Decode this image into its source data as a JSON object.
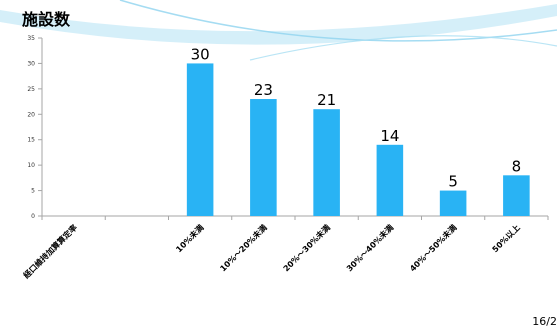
{
  "title": "施設数",
  "page_number": "16/2",
  "colors": {
    "bar": "#29B3F4",
    "axis": "#a6a6a6",
    "swoosh_light": "#c7eaf7",
    "swoosh_mid": "#8fd3ef"
  },
  "chart_data": {
    "type": "bar",
    "title": "施設数",
    "categories": [
      "経口維持加算算定率",
      "",
      "10%未満",
      "10%～20%未満",
      "20%～30%未満",
      "30%～40%未満",
      "40%～50%未満",
      "50%以上"
    ],
    "values": [
      null,
      null,
      30,
      23,
      21,
      14,
      5,
      8
    ],
    "data_labels": [
      "",
      "",
      "30",
      "23",
      "21",
      "14",
      "5",
      "8"
    ],
    "y_ticks": [
      "0",
      "5",
      "10",
      "15",
      "20",
      "25",
      "30",
      "35"
    ],
    "ylim": [
      0,
      35
    ],
    "xlabel": "",
    "ylabel": "",
    "grid": false,
    "legend": "none"
  }
}
